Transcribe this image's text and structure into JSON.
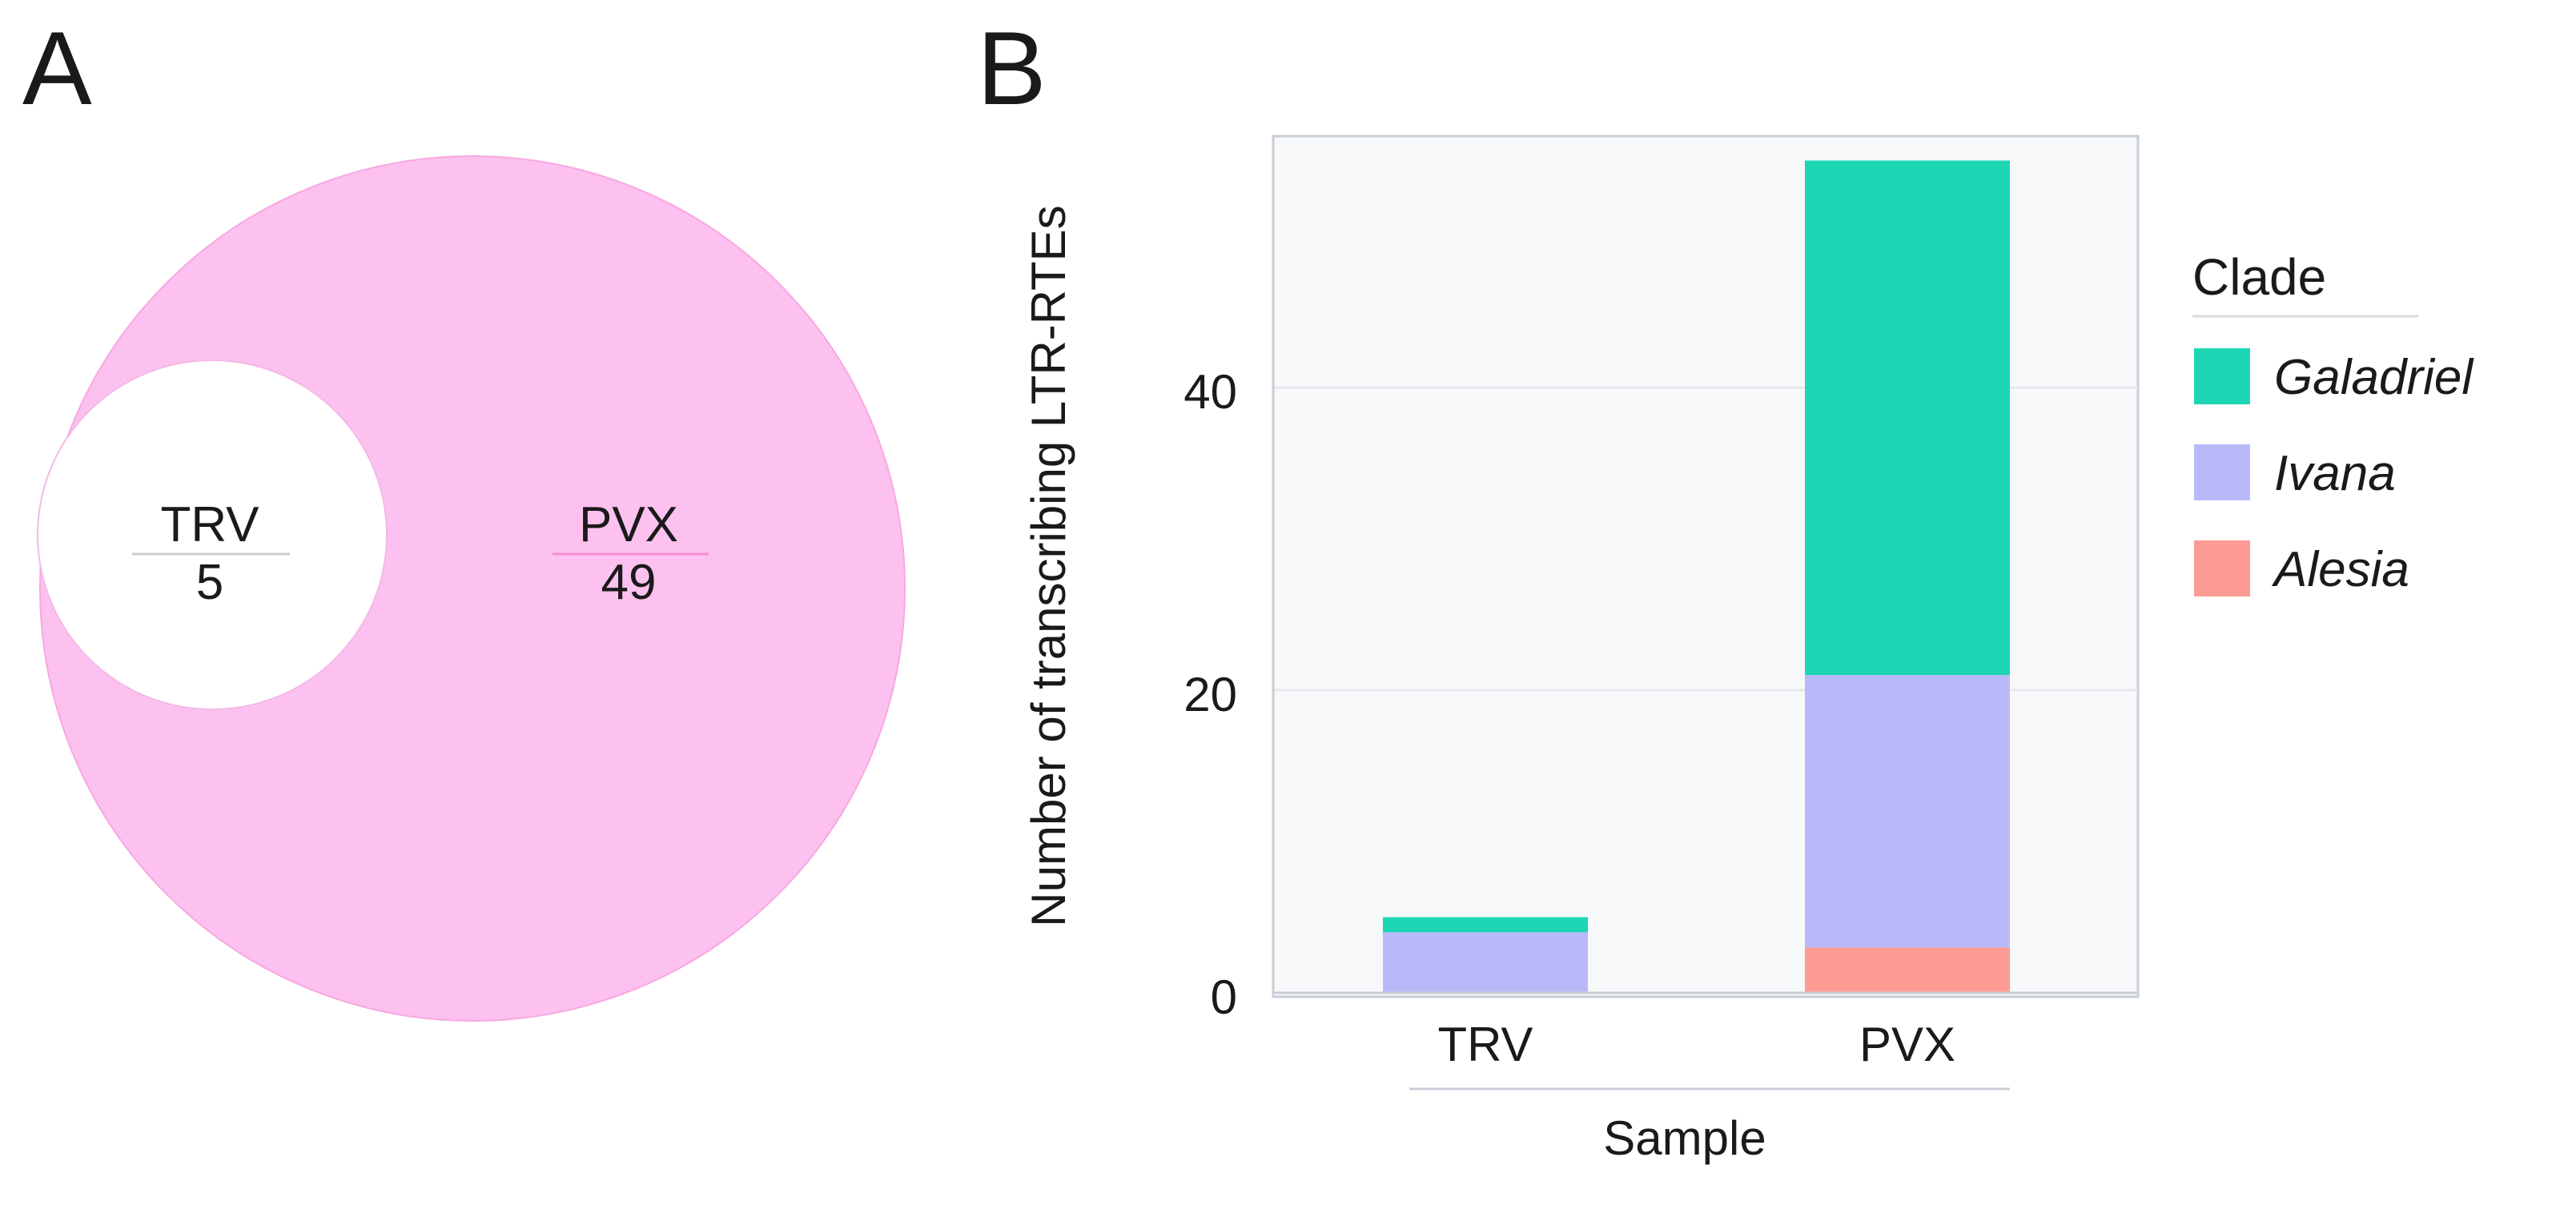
{
  "panels": {
    "a_label": "A",
    "b_label": "B"
  },
  "venn": {
    "outer": {
      "name": "PVX",
      "value": "49",
      "color": "#fdc1ef"
    },
    "inner": {
      "name": "TRV",
      "value": "5",
      "color": "#ffffff"
    }
  },
  "colors": {
    "Galadriel": "#1dd6b3",
    "Ivana": "#b9b9fa",
    "Alesia": "#fd9a93",
    "panel_bg": "#f7f8fa",
    "grid": "#e6e8ec",
    "frame": "#c9ced6"
  },
  "chart_data": {
    "type": "bar",
    "stacked": true,
    "categories": [
      "TRV",
      "PVX"
    ],
    "series": [
      {
        "name": "Alesia",
        "values": [
          0,
          3
        ]
      },
      {
        "name": "Ivana",
        "values": [
          4,
          18
        ]
      },
      {
        "name": "Galadriel",
        "values": [
          1,
          34
        ]
      }
    ],
    "xlabel": "Sample",
    "ylabel": "Number of transcribing LTR-RTEs",
    "yticks": [
      0,
      20,
      40
    ],
    "ylim": [
      0,
      58
    ],
    "grid": true,
    "legend": {
      "title": "Clade",
      "entries": [
        "Galadriel",
        "Ivana",
        "Alesia"
      ],
      "position": "right"
    }
  }
}
